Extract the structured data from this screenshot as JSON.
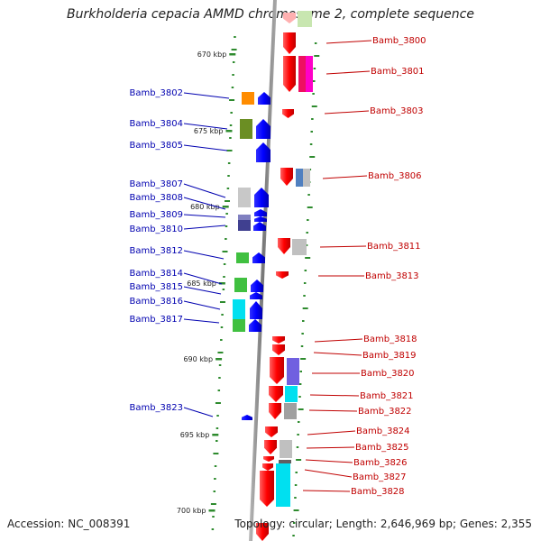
{
  "title": "Burkholderia cepacia AMMD chromosome 2, complete sequence",
  "accession": "Accession: NC_008391",
  "summary": "Topology: circular; Length: 2,646,969 bp; Genes: 2,355",
  "kbp_labels": [
    "670 kbp",
    "675 kbp",
    "680 kbp",
    "685 kbp",
    "690 kbp",
    "695 kbp",
    "700 kbp"
  ],
  "genes_left": [
    "Bamb_3802",
    "Bamb_3804",
    "Bamb_3805",
    "Bamb_3807",
    "Bamb_3808",
    "Bamb_3809",
    "Bamb_3810",
    "Bamb_3812",
    "Bamb_3814",
    "Bamb_3815",
    "Bamb_3816",
    "Bamb_3817",
    "Bamb_3823"
  ],
  "genes_right": [
    "Bamb_3800",
    "Bamb_3801",
    "Bamb_3803",
    "Bamb_3806",
    "Bamb_3811",
    "Bamb_3813",
    "Bamb_3818",
    "Bamb_3819",
    "Bamb_3820",
    "Bamb_3821",
    "Bamb_3822",
    "Bamb_3824",
    "Bamb_3825",
    "Bamb_3826",
    "Bamb_3827",
    "Bamb_3828"
  ],
  "colors": {
    "reverse_strand": "#ff0000",
    "forward_strand": "#0000ff",
    "left_label": "#0000b0",
    "right_label": "#c00000",
    "tick": "#2e8b2e",
    "backbone": "#888888"
  }
}
